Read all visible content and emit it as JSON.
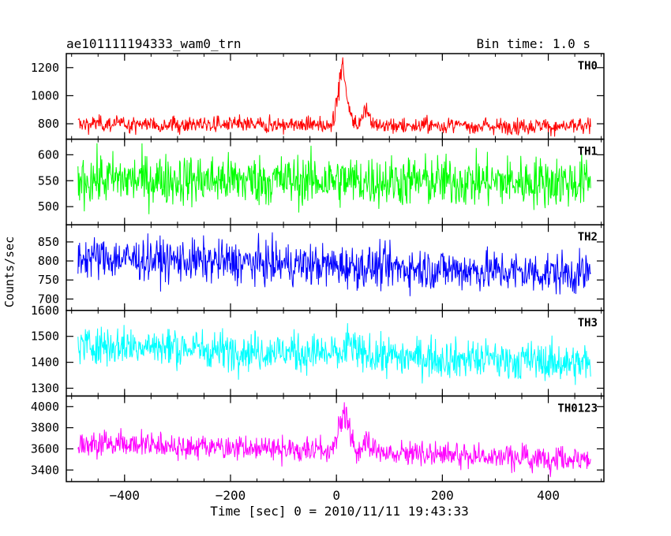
{
  "chart_data": {
    "type": "line",
    "title_left": "ae101111194333_wam0_trn",
    "title_right": "Bin time: 1.0 s",
    "xlabel": "Time [sec] 0 = 2010/11/11 19:43:33",
    "ylabel": "Counts/sec",
    "xlim": [
      -510,
      505
    ],
    "xticks": [
      -400,
      -200,
      0,
      200,
      400
    ],
    "x_start": -488,
    "x_end": 480,
    "x_step": 1,
    "panels": [
      {
        "name": "TH0",
        "color": "#ff0000",
        "ylim": [
          690,
          1300
        ],
        "yticks": [
          800,
          1000,
          1200
        ],
        "baseline_start": 800,
        "baseline_end": 780,
        "noise": 30,
        "spikes": [
          [
            4,
            230,
            6
          ],
          [
            12,
            420,
            4
          ],
          [
            22,
            200,
            5
          ],
          [
            55,
            150,
            7
          ]
        ]
      },
      {
        "name": "TH1",
        "color": "#00ff00",
        "ylim": [
          465,
          630
        ],
        "yticks": [
          500,
          550,
          600
        ],
        "baseline_start": 553,
        "baseline_end": 547,
        "noise": 25,
        "spikes": []
      },
      {
        "name": "TH2",
        "color": "#0000ff",
        "ylim": [
          670,
          895
        ],
        "yticks": [
          700,
          750,
          800,
          850
        ],
        "baseline_start": 810,
        "baseline_end": 765,
        "noise": 28,
        "spikes": []
      },
      {
        "name": "TH3",
        "color": "#00ffff",
        "ylim": [
          1270,
          1600
        ],
        "yticks": [
          1300,
          1400,
          1500,
          1600
        ],
        "baseline_start": 1470,
        "baseline_end": 1395,
        "noise": 38,
        "spikes": [
          [
            25,
            60,
            6
          ]
        ]
      },
      {
        "name": "TH0123",
        "color": "#ff00ff",
        "ylim": [
          3290,
          4100
        ],
        "yticks": [
          3400,
          3600,
          3800,
          4000
        ],
        "baseline_start": 3660,
        "baseline_end": 3500,
        "noise": 60,
        "spikes": [
          [
            4,
            250,
            6
          ],
          [
            14,
            420,
            4
          ],
          [
            24,
            230,
            5
          ],
          [
            58,
            170,
            7
          ]
        ]
      }
    ]
  }
}
